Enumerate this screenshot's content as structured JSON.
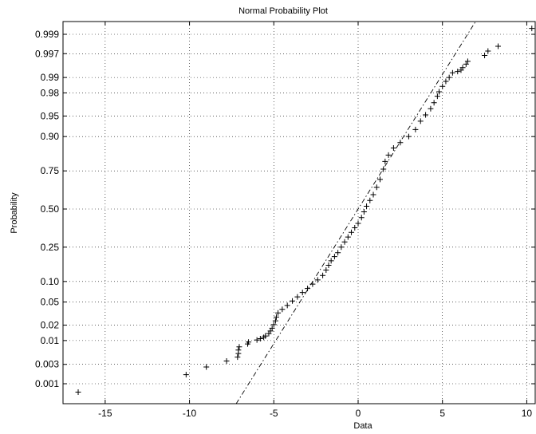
{
  "chart_data": {
    "type": "scatter",
    "title": "Normal Probability Plot",
    "xlabel": "Data",
    "ylabel": "Probability",
    "xlim": [
      -17.5,
      10.5
    ],
    "x_ticks": [
      -15,
      -10,
      -5,
      0,
      5,
      10
    ],
    "y_scale": "normal-probability",
    "y_ticks": [
      0.001,
      0.003,
      0.01,
      0.02,
      0.05,
      0.1,
      0.25,
      0.5,
      0.75,
      0.9,
      0.95,
      0.98,
      0.99,
      0.997,
      0.999
    ],
    "y_tick_labels": [
      "0.001",
      "0.003",
      "0.01",
      "0.02",
      "0.05",
      "0.10",
      "0.25",
      "0.50",
      "0.75",
      "0.90",
      "0.95",
      "0.98",
      "0.99",
      "0.997",
      "0.999"
    ],
    "grid": true,
    "marker": "+",
    "series": [
      {
        "points": [
          [
            -16.6,
            0.0006
          ],
          [
            -10.2,
            0.0017
          ],
          [
            -9.0,
            0.0026
          ],
          [
            -7.8,
            0.0036
          ],
          [
            -7.15,
            0.0044
          ],
          [
            -7.1,
            0.0053
          ],
          [
            -7.1,
            0.0063
          ],
          [
            -7.05,
            0.0074
          ],
          [
            -6.55,
            0.0085
          ],
          [
            -6.5,
            0.0093
          ],
          [
            -6.0,
            0.0103
          ],
          [
            -5.8,
            0.0109
          ],
          [
            -5.6,
            0.0116
          ],
          [
            -5.5,
            0.0124
          ],
          [
            -5.3,
            0.0138
          ],
          [
            -5.2,
            0.0155
          ],
          [
            -5.1,
            0.0175
          ],
          [
            -5.0,
            0.0205
          ],
          [
            -4.9,
            0.024
          ],
          [
            -4.85,
            0.028
          ],
          [
            -4.75,
            0.033
          ],
          [
            -4.5,
            0.038
          ],
          [
            -4.2,
            0.044
          ],
          [
            -3.9,
            0.052
          ],
          [
            -3.6,
            0.06
          ],
          [
            -3.3,
            0.07
          ],
          [
            -3.0,
            0.08
          ],
          [
            -2.7,
            0.092
          ],
          [
            -2.4,
            0.105
          ],
          [
            -2.1,
            0.12
          ],
          [
            -1.9,
            0.14
          ],
          [
            -1.75,
            0.16
          ],
          [
            -1.6,
            0.18
          ],
          [
            -1.4,
            0.2
          ],
          [
            -1.2,
            0.22
          ],
          [
            -1.0,
            0.25
          ],
          [
            -0.8,
            0.28
          ],
          [
            -0.6,
            0.31
          ],
          [
            -0.4,
            0.34
          ],
          [
            -0.2,
            0.37
          ],
          [
            0.0,
            0.4
          ],
          [
            0.2,
            0.44
          ],
          [
            0.35,
            0.48
          ],
          [
            0.5,
            0.52
          ],
          [
            0.7,
            0.56
          ],
          [
            0.9,
            0.6
          ],
          [
            1.1,
            0.65
          ],
          [
            1.3,
            0.7
          ],
          [
            1.5,
            0.76
          ],
          [
            1.6,
            0.8
          ],
          [
            1.8,
            0.83
          ],
          [
            2.1,
            0.86
          ],
          [
            2.5,
            0.88
          ],
          [
            3.0,
            0.9
          ],
          [
            3.4,
            0.92
          ],
          [
            3.7,
            0.94
          ],
          [
            4.0,
            0.952
          ],
          [
            4.3,
            0.962
          ],
          [
            4.5,
            0.97
          ],
          [
            4.7,
            0.977
          ],
          [
            4.8,
            0.981
          ],
          [
            5.0,
            0.985
          ],
          [
            5.2,
            0.988
          ],
          [
            5.4,
            0.99
          ],
          [
            5.6,
            0.992
          ],
          [
            5.9,
            0.9925
          ],
          [
            6.1,
            0.993
          ],
          [
            6.2,
            0.9938
          ],
          [
            6.4,
            0.9948
          ],
          [
            6.5,
            0.9955
          ],
          [
            7.5,
            0.9967
          ],
          [
            7.7,
            0.9974
          ],
          [
            8.3,
            0.998
          ],
          [
            10.3,
            0.9993
          ]
        ]
      }
    ],
    "reference_line": {
      "style": "dash-dot",
      "mean": 0.0,
      "sd": 2.1
    }
  }
}
